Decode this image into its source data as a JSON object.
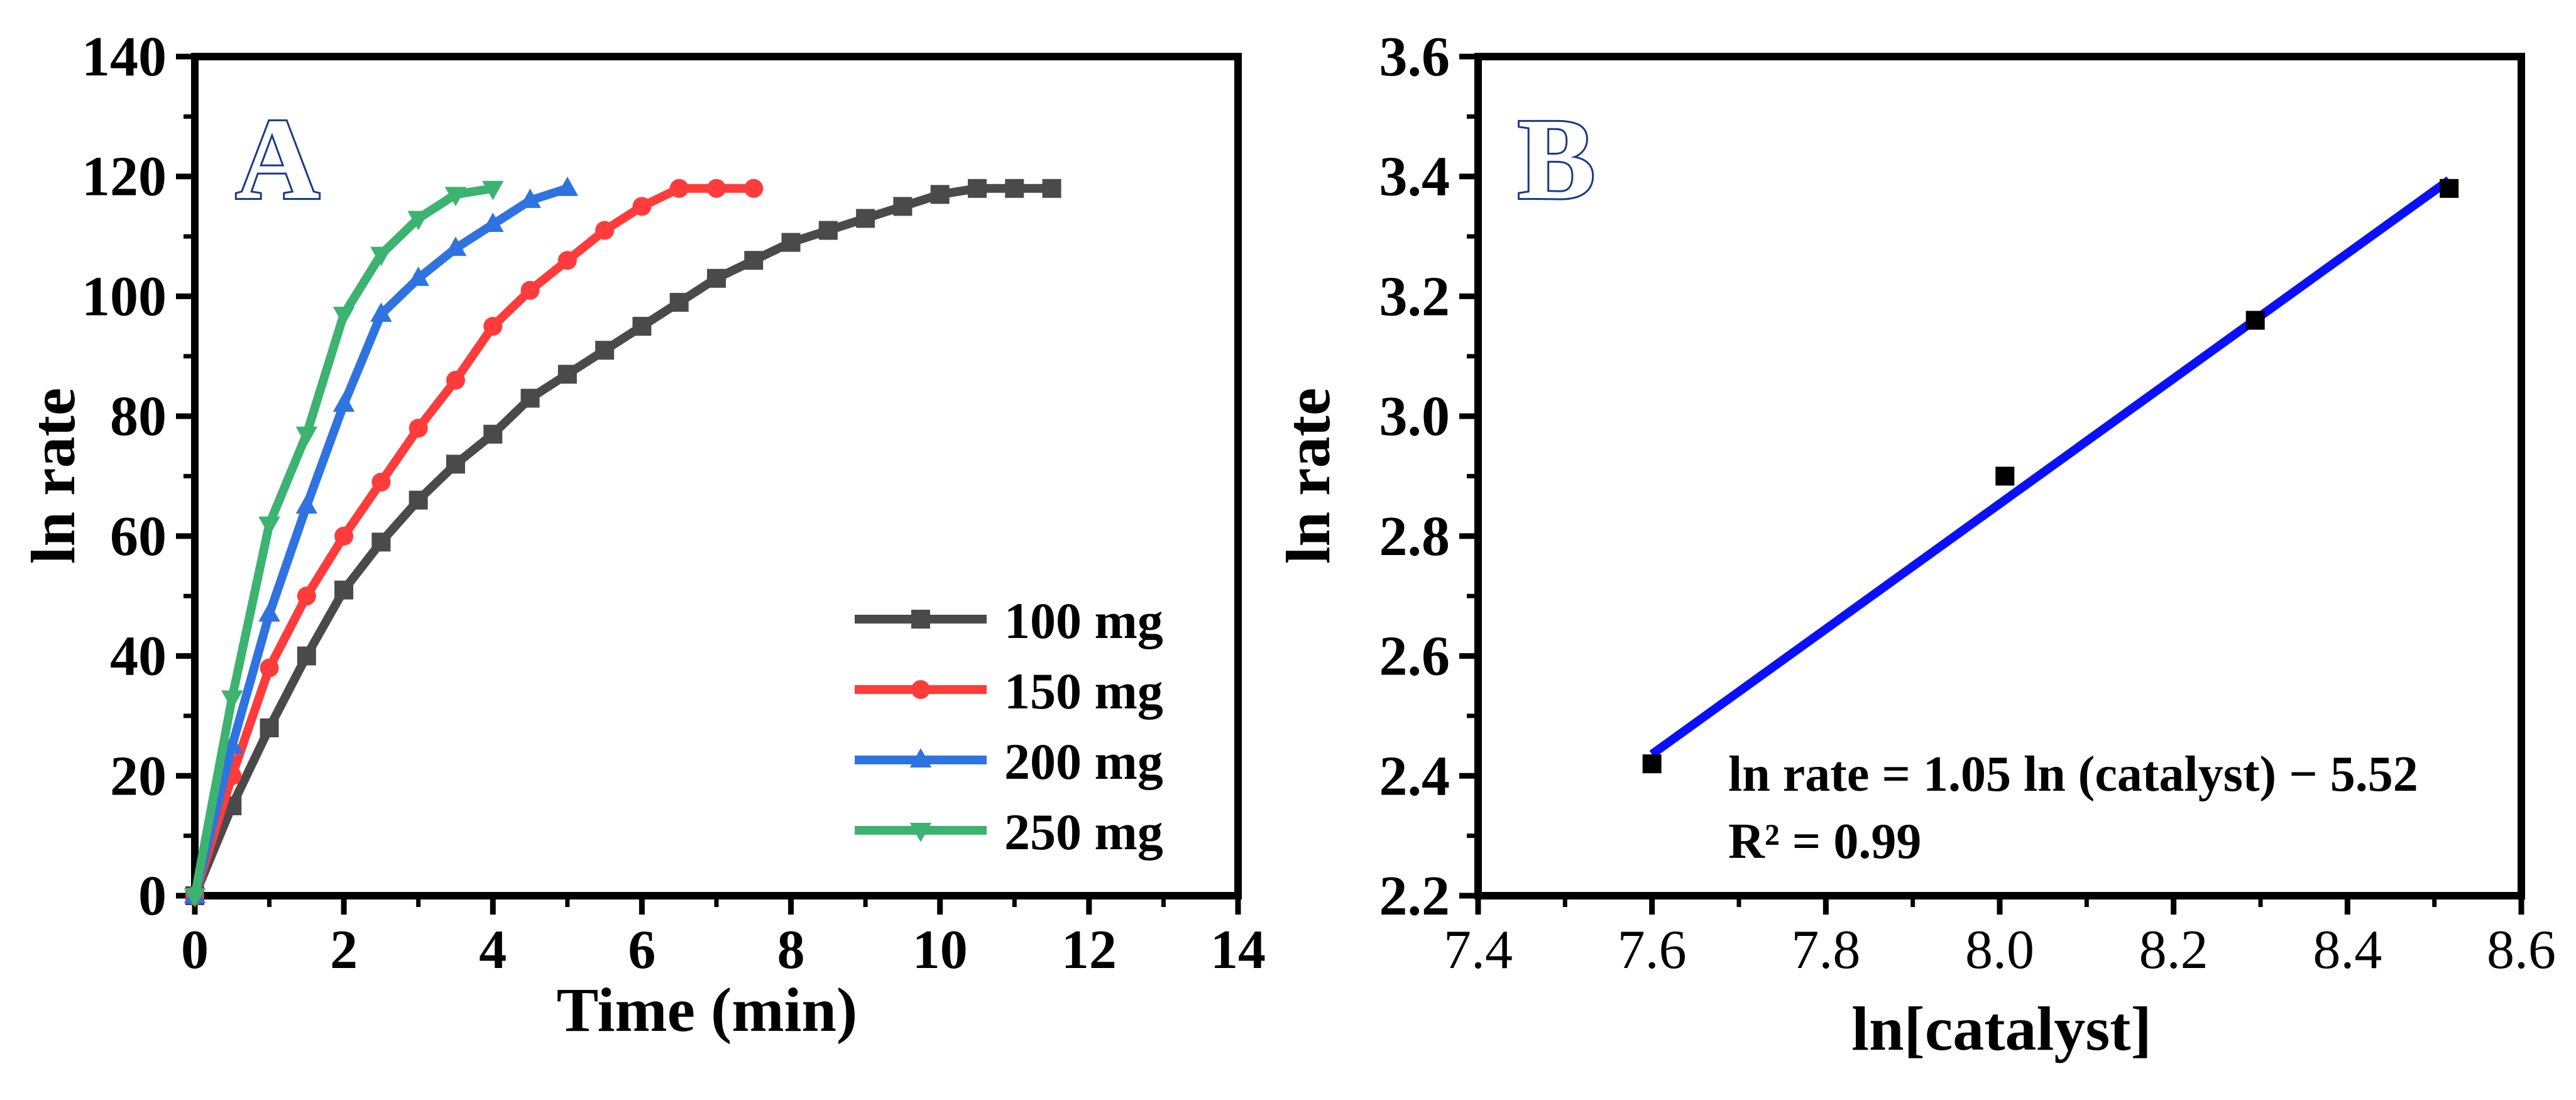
{
  "colors": {
    "s100": "#4a4a4a",
    "s150": "#ff3b3b",
    "s200": "#2f73e0",
    "s250": "#3cb371",
    "fit": "#0a10ff",
    "points_b": "#000000"
  },
  "chart_data": [
    {
      "id": "A",
      "panel_label": "A",
      "type": "line",
      "title": "",
      "xlabel": "Time (min)",
      "ylabel": "ln rate",
      "xlim": [
        0,
        14
      ],
      "ylim": [
        0,
        140
      ],
      "xticks": [
        0,
        2,
        4,
        6,
        8,
        10,
        12,
        14
      ],
      "yticks": [
        0,
        20,
        40,
        60,
        80,
        100,
        120,
        140
      ],
      "xtick_labels": [
        "0",
        "2",
        "4",
        "6",
        "8",
        "10",
        "12",
        "14"
      ],
      "ytick_labels": [
        "0",
        "20",
        "40",
        "60",
        "80",
        "100",
        "120",
        "140"
      ],
      "grid": false,
      "legend_position": "bottom-right",
      "series": [
        {
          "name": "100 mg",
          "marker": "square",
          "color_key": "s100",
          "x": [
            0,
            0.5,
            1,
            1.5,
            2,
            2.5,
            3,
            3.5,
            4,
            4.5,
            5,
            5.5,
            6,
            6.5,
            7,
            7.5,
            8,
            8.5,
            9,
            9.5,
            10,
            10.5,
            11,
            11.5
          ],
          "y": [
            0,
            15,
            28,
            40,
            51,
            59,
            66,
            72,
            77,
            83,
            87,
            91,
            95,
            99,
            103,
            106,
            109,
            111,
            113,
            115,
            117,
            118,
            118,
            118
          ]
        },
        {
          "name": "150 mg",
          "marker": "circle",
          "color_key": "s150",
          "x": [
            0,
            0.5,
            1,
            1.5,
            2,
            2.5,
            3,
            3.5,
            4,
            4.5,
            5,
            5.5,
            6,
            6.5,
            7,
            7.5
          ],
          "y": [
            0,
            20,
            38,
            50,
            60,
            69,
            78,
            86,
            95,
            101,
            106,
            111,
            115,
            118,
            118,
            118
          ]
        },
        {
          "name": "200 mg",
          "marker": "triangle-up",
          "color_key": "s200",
          "x": [
            0,
            0.5,
            1,
            1.5,
            2,
            2.5,
            3,
            3.5,
            4,
            4.5,
            5
          ],
          "y": [
            0,
            25,
            47,
            65,
            82,
            97,
            103,
            108,
            112,
            116,
            118
          ]
        },
        {
          "name": "250 mg",
          "marker": "triangle-down",
          "color_key": "s250",
          "x": [
            0,
            0.5,
            1,
            1.5,
            2,
            2.5,
            3,
            3.5,
            4
          ],
          "y": [
            0,
            33,
            62,
            77,
            97,
            107,
            113,
            117,
            118
          ]
        }
      ]
    },
    {
      "id": "B",
      "panel_label": "B",
      "type": "scatter",
      "title": "",
      "xlabel": "ln[catalyst]",
      "ylabel": "ln rate",
      "xlim": [
        7.4,
        8.6
      ],
      "ylim": [
        2.2,
        3.6
      ],
      "xticks": [
        7.4,
        7.6,
        7.8,
        8.0,
        8.2,
        8.4,
        8.6
      ],
      "yticks": [
        2.2,
        2.4,
        2.6,
        2.8,
        3.0,
        3.2,
        3.4,
        3.6
      ],
      "xtick_labels": [
        "7.4",
        "7.6",
        "7.8",
        "8.0",
        "8.2",
        "8.4",
        "8.6"
      ],
      "ytick_labels": [
        "2.2",
        "2.4",
        "2.6",
        "2.8",
        "3.0",
        "3.2",
        "3.4",
        "3.6"
      ],
      "grid": false,
      "points": {
        "x": [
          7.6,
          8.006,
          8.294,
          8.517
        ],
        "y": [
          2.42,
          2.9,
          3.16,
          3.38
        ]
      },
      "fit": {
        "x": [
          7.6,
          8.517
        ],
        "y": [
          2.436,
          3.394
        ]
      },
      "equation_text": "ln rate = 1.05 ln (catalyst) − 5.52",
      "r2_text": "R² = 0.99"
    }
  ]
}
